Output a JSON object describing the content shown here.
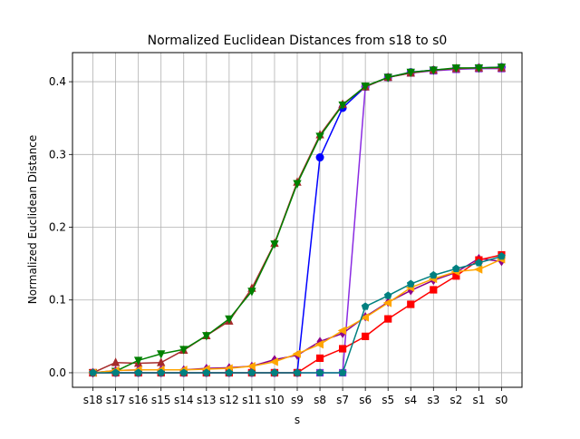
{
  "chart_data": {
    "type": "line",
    "title": "Normalized Euclidean Distances from s18 to s0",
    "xlabel": "s",
    "ylabel": "Normalized Euclidean Distance",
    "categories": [
      "s18",
      "s17",
      "s16",
      "s15",
      "s14",
      "s13",
      "s12",
      "s11",
      "s10",
      "s9",
      "s8",
      "s7",
      "s6",
      "s5",
      "s4",
      "s3",
      "s2",
      "s1",
      "s0"
    ],
    "ylim": [
      -0.02,
      0.44
    ],
    "yticks": [
      "0.0",
      "0.1",
      "0.2",
      "0.3",
      "0.4"
    ],
    "grid": true,
    "series": [
      {
        "color": "#0000ff",
        "marker": "circle",
        "values": [
          0,
          0,
          0,
          0,
          0,
          0,
          0,
          0,
          0,
          0,
          0.296,
          0.364,
          0.393,
          0.406,
          0.413,
          0.416,
          0.418,
          0.419,
          0.42
        ]
      },
      {
        "color": "#8a2be2",
        "marker": "square",
        "values": [
          0,
          0,
          0,
          0,
          0,
          0,
          0,
          0,
          0,
          0,
          0,
          0,
          0.393,
          0.406,
          0.412,
          0.415,
          0.417,
          0.418,
          0.418
        ]
      },
      {
        "color": "#a52a2a",
        "marker": "triangle-up",
        "values": [
          0,
          0.014,
          0.013,
          0.014,
          0.031,
          0.051,
          0.071,
          0.116,
          0.178,
          0.262,
          0.327,
          0.369,
          0.393,
          0.406,
          0.412,
          0.416,
          0.418,
          0.419,
          0.419
        ]
      },
      {
        "color": "#008000",
        "marker": "triangle-down",
        "values": [
          0,
          0.002,
          0.017,
          0.026,
          0.032,
          0.051,
          0.074,
          0.112,
          0.177,
          0.26,
          0.325,
          0.368,
          0.394,
          0.406,
          0.413,
          0.416,
          0.419,
          0.419,
          0.42
        ]
      },
      {
        "color": "#8b008b",
        "marker": "diamond",
        "values": [
          0,
          0.003,
          0.004,
          0.004,
          0.004,
          0.006,
          0.007,
          0.009,
          0.018,
          0.024,
          0.043,
          0.054,
          0.077,
          0.097,
          0.113,
          0.127,
          0.138,
          0.157,
          0.153
        ]
      },
      {
        "color": "#ff0000",
        "marker": "square",
        "values": [
          0,
          0,
          0,
          0,
          0,
          0,
          0,
          0,
          0,
          0,
          0.02,
          0.033,
          0.05,
          0.074,
          0.094,
          0.114,
          0.133,
          0.155,
          0.162
        ]
      },
      {
        "color": "#ffa500",
        "marker": "triangle-left",
        "values": [
          0,
          0.003,
          0.004,
          0.004,
          0.004,
          0.005,
          0.006,
          0.009,
          0.015,
          0.026,
          0.039,
          0.058,
          0.076,
          0.096,
          0.117,
          0.129,
          0.139,
          0.142,
          0.156
        ]
      },
      {
        "color": "#008080",
        "marker": "pentagon",
        "values": [
          0,
          0,
          0,
          0,
          0,
          0,
          0,
          0,
          0,
          0,
          0,
          0,
          0.091,
          0.106,
          0.122,
          0.134,
          0.143,
          0.151,
          0.16
        ]
      }
    ]
  }
}
